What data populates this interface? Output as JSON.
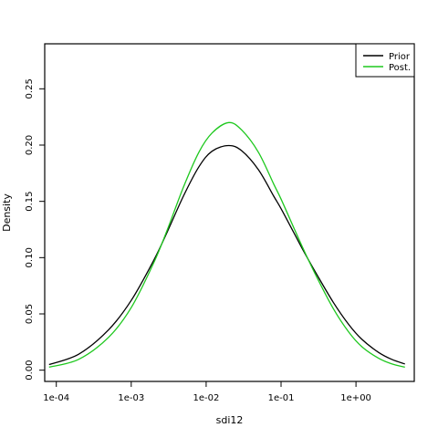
{
  "chart_data": {
    "type": "line",
    "title": "",
    "xlabel": "sdi12",
    "ylabel": "Density",
    "x_scale": "log10",
    "xlim": [
      7e-05,
      6
    ],
    "ylim": [
      -0.01,
      0.29
    ],
    "x_ticks": [
      {
        "value": 0.0001,
        "label": "1e-04"
      },
      {
        "value": 0.001,
        "label": "1e-03"
      },
      {
        "value": 0.01,
        "label": "1e-02"
      },
      {
        "value": 0.1,
        "label": "1e-01"
      },
      {
        "value": 1,
        "label": "1e+00"
      }
    ],
    "y_ticks": [
      {
        "value": 0.0,
        "label": "0.00"
      },
      {
        "value": 0.05,
        "label": "0.05"
      },
      {
        "value": 0.1,
        "label": "0.10"
      },
      {
        "value": 0.15,
        "label": "0.15"
      },
      {
        "value": 0.2,
        "label": "0.20"
      },
      {
        "value": 0.25,
        "label": "0.25"
      }
    ],
    "grid": false,
    "legend": "top-right",
    "series": [
      {
        "name": "Prior",
        "color": "#000000",
        "x": [
          8e-05,
          0.0002,
          0.0005,
          0.001,
          0.002,
          0.003,
          0.005,
          0.008,
          0.012,
          0.02,
          0.03,
          0.05,
          0.08,
          0.1,
          0.15,
          0.2,
          0.3,
          0.5,
          0.8,
          1.2,
          2,
          3,
          4.5
        ],
        "y": [
          0.005,
          0.0143,
          0.036,
          0.062,
          0.0977,
          0.1223,
          0.155,
          0.1807,
          0.1946,
          0.1996,
          0.1948,
          0.178,
          0.1545,
          0.1435,
          0.1215,
          0.1058,
          0.085,
          0.0601,
          0.0406,
          0.0274,
          0.0158,
          0.0096,
          0.0055
        ]
      },
      {
        "name": "Post.",
        "color": "#1ec81e",
        "x": [
          8e-05,
          0.0002,
          0.0005,
          0.001,
          0.002,
          0.003,
          0.005,
          0.008,
          0.012,
          0.02,
          0.03,
          0.05,
          0.08,
          0.1,
          0.15,
          0.2,
          0.3,
          0.5,
          0.8,
          1.2,
          2,
          3,
          4.5
        ],
        "y": [
          0.0027,
          0.0097,
          0.0293,
          0.0556,
          0.0955,
          0.124,
          0.163,
          0.1937,
          0.2108,
          0.22,
          0.2132,
          0.1935,
          0.1652,
          0.152,
          0.1256,
          0.1071,
          0.0826,
          0.0545,
          0.0339,
          0.0208,
          0.0106,
          0.0056,
          0.0027
        ]
      }
    ]
  }
}
